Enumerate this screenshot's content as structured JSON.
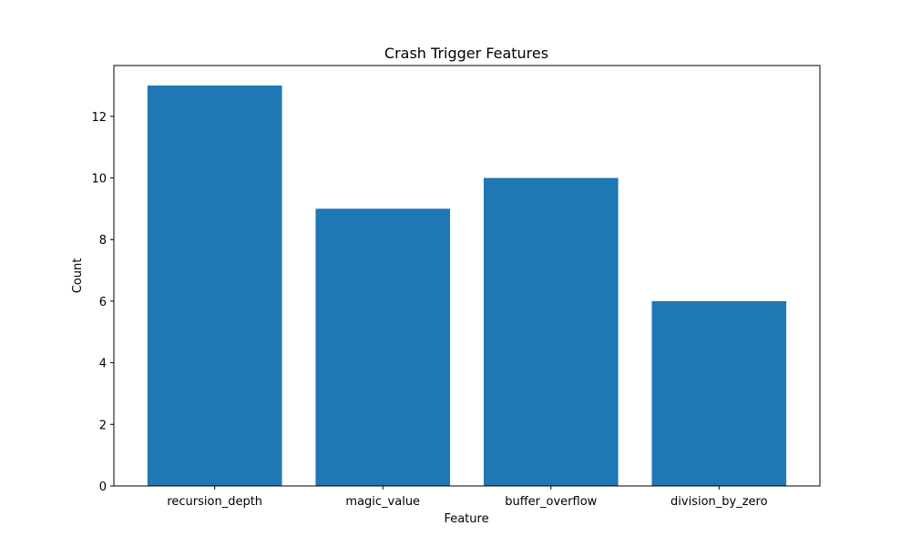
{
  "chart_data": {
    "type": "bar",
    "title": "Crash Trigger Features",
    "xlabel": "Feature",
    "ylabel": "Count",
    "categories": [
      "recursion_depth",
      "magic_value",
      "buffer_overflow",
      "division_by_zero"
    ],
    "values": [
      13,
      9,
      10,
      6
    ],
    "ylim": [
      0,
      13.65
    ],
    "yticks": [
      0,
      2,
      4,
      6,
      8,
      10,
      12
    ],
    "grid": false,
    "legend": "none",
    "colors": {
      "bar": "#1f77b4",
      "axis": "#000000"
    }
  }
}
